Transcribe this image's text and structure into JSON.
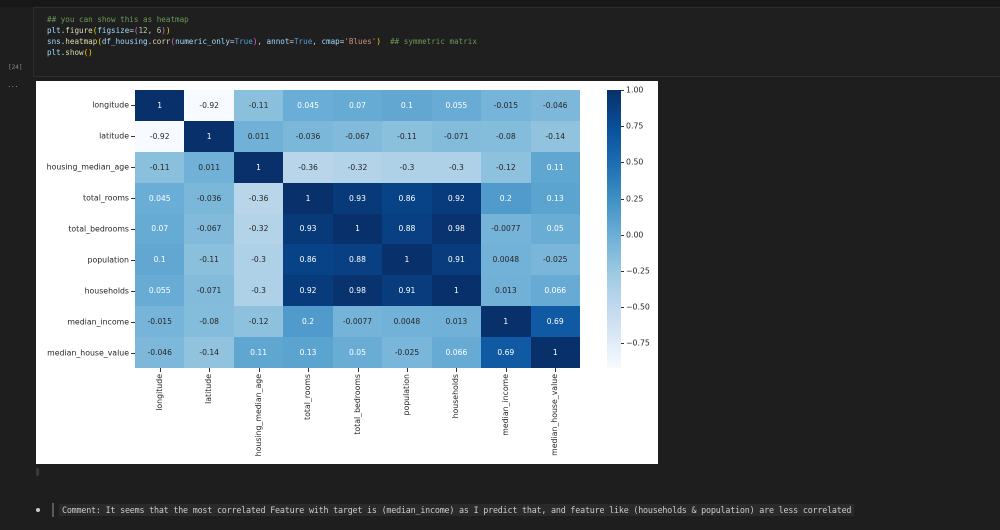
{
  "notebook": {
    "execution_count": "[24]",
    "output_indicator": "...",
    "code_lines": [
      "## you can show this as heatmap",
      "plt.figure(figsize=(12, 6))",
      "sns.heatmap(df_housing.corr(numeric_only=True), annot=True, cmap='Blues')  ## symmetric matrix",
      "plt.show()"
    ],
    "markdown_comment": "Comment: It seems that the most correlated Feature with target is (median_income) as I predict that, and feature like (households & population) are less correlated"
  },
  "chart_data": {
    "type": "heatmap",
    "title": "",
    "colormap": "Blues",
    "xlabel": "",
    "ylabel": "",
    "labels": [
      "longitude",
      "latitude",
      "housing_median_age",
      "total_rooms",
      "total_bedrooms",
      "population",
      "households",
      "median_income",
      "median_house_value"
    ],
    "matrix": [
      [
        "1",
        "-0.92",
        "-0.11",
        "0.045",
        "0.07",
        "0.1",
        "0.055",
        "-0.015",
        "-0.046"
      ],
      [
        "-0.92",
        "1",
        "0.011",
        "-0.036",
        "-0.067",
        "-0.11",
        "-0.071",
        "-0.08",
        "-0.14"
      ],
      [
        "-0.11",
        "0.011",
        "1",
        "-0.36",
        "-0.32",
        "-0.3",
        "-0.3",
        "-0.12",
        "0.11"
      ],
      [
        "0.045",
        "-0.036",
        "-0.36",
        "1",
        "0.93",
        "0.86",
        "0.92",
        "0.2",
        "0.13"
      ],
      [
        "0.07",
        "-0.067",
        "-0.32",
        "0.93",
        "1",
        "0.88",
        "0.98",
        "-0.0077",
        "0.05"
      ],
      [
        "0.1",
        "-0.11",
        "-0.3",
        "0.86",
        "0.88",
        "1",
        "0.91",
        "0.0048",
        "-0.025"
      ],
      [
        "0.055",
        "-0.071",
        "-0.3",
        "0.92",
        "0.98",
        "0.91",
        "1",
        "0.013",
        "0.066"
      ],
      [
        "-0.015",
        "-0.08",
        "-0.12",
        "0.2",
        "-0.0077",
        "0.0048",
        "0.013",
        "1",
        "0.69"
      ],
      [
        "-0.046",
        "-0.14",
        "0.11",
        "0.13",
        "0.05",
        "-0.025",
        "0.066",
        "0.69",
        "1"
      ]
    ],
    "colorbar": {
      "range": [
        -0.92,
        1.0
      ],
      "ticks": [
        "1.00",
        "0.75",
        "0.50",
        "0.25",
        "0.00",
        "−0.25",
        "−0.50",
        "−0.75"
      ],
      "tick_values": [
        1.0,
        0.75,
        0.5,
        0.25,
        0.0,
        -0.25,
        -0.5,
        -0.75
      ]
    }
  }
}
